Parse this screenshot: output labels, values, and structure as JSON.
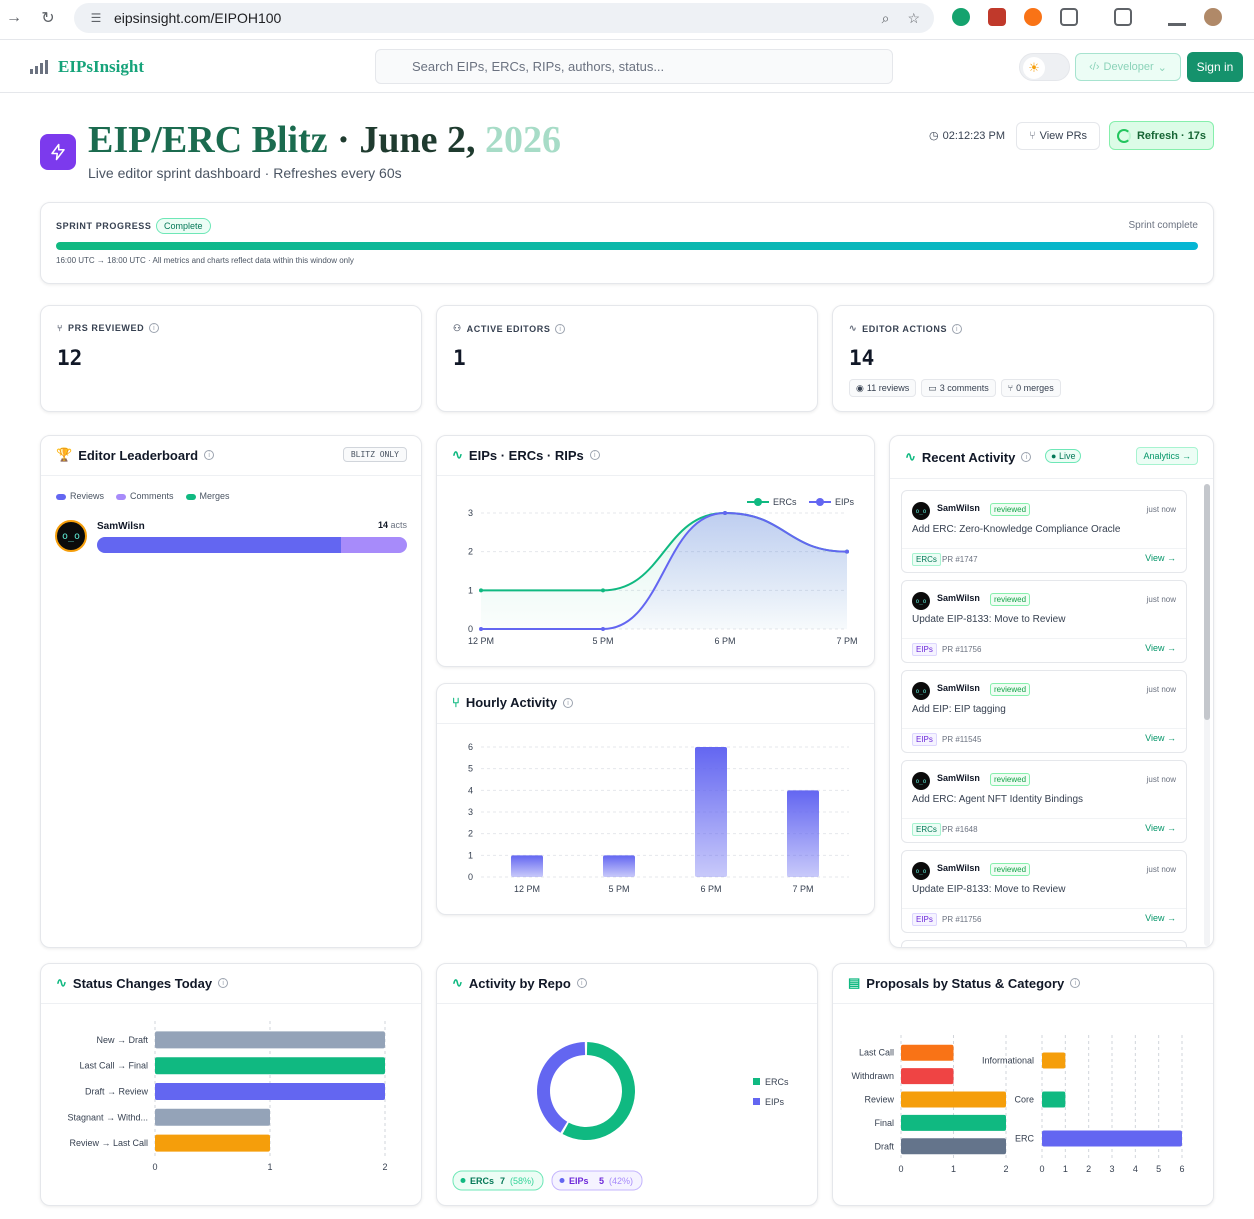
{
  "browser": {
    "url": "eipsinsight.com/EIPOH100"
  },
  "header": {
    "logo": "EIPsInsight",
    "search_placeholder": "Search EIPs, ERCs, RIPs, authors, status...",
    "developer_label": "Developer",
    "signin_label": "Sign in"
  },
  "page": {
    "title_main": "EIP/ERC Blitz",
    "title_sep": " · ",
    "title_date": "June 2, ",
    "title_year": "2026",
    "subtitle": "Live editor sprint dashboard · Refreshes every 60s",
    "clock": "02:12:23 PM",
    "view_prs": "View PRs",
    "refresh": "Refresh · 17s"
  },
  "sprint": {
    "label": "SPRINT PROGRESS",
    "badge": "Complete",
    "status": "Sprint complete",
    "note": "16:00 UTC → 18:00 UTC · All metrics and charts reflect data within this window only",
    "progress_fraction": 1.0
  },
  "stats": {
    "prs_reviewed": {
      "label": "PRS REVIEWED",
      "value": "12"
    },
    "active_editors": {
      "label": "ACTIVE EDITORS",
      "value": "1"
    },
    "editor_actions": {
      "label": "EDITOR ACTIONS",
      "value": "14",
      "chips": [
        "11 reviews",
        "3 comments",
        "0 merges"
      ]
    }
  },
  "leaderboard": {
    "title": "Editor Leaderboard",
    "badge": "BLITZ ONLY",
    "legend": [
      "Reviews",
      "Comments",
      "Merges"
    ],
    "colors": {
      "reviews": "#6366f1",
      "comments": "#a78bfa",
      "merges": "#10b981"
    },
    "editors": [
      {
        "name": "SamWilsn",
        "acts_num": "14",
        "acts_unit": "acts",
        "reviews": 11,
        "comments": 3,
        "merges": 0
      }
    ]
  },
  "recent": {
    "title": "Recent Activity",
    "live": "Live",
    "analytics": "Analytics →",
    "items": [
      {
        "who": "SamWilsn",
        "verb": "reviewed",
        "when": "just now",
        "what": "Add ERC: Zero-Knowledge Compliance Oracle",
        "tag": "ERCs",
        "pr": "PR #1747",
        "view": "View →"
      },
      {
        "who": "SamWilsn",
        "verb": "reviewed",
        "when": "just now",
        "what": "Update EIP-8133: Move to Review",
        "tag": "EIPs",
        "pr": "PR #11756",
        "view": "View →"
      },
      {
        "who": "SamWilsn",
        "verb": "reviewed",
        "when": "just now",
        "what": "Add EIP: EIP tagging",
        "tag": "EIPs",
        "pr": "PR #11545",
        "view": "View →"
      },
      {
        "who": "SamWilsn",
        "verb": "reviewed",
        "when": "just now",
        "what": "Add ERC: Agent NFT Identity Bindings",
        "tag": "ERCs",
        "pr": "PR #1648",
        "view": "View →"
      },
      {
        "who": "SamWilsn",
        "verb": "reviewed",
        "when": "just now",
        "what": "Update EIP-8133: Move to Review",
        "tag": "EIPs",
        "pr": "PR #11756",
        "view": "View →"
      }
    ]
  },
  "cards": {
    "line_title": "EIPs · ERCs · RIPs",
    "hourly_title": "Hourly Activity",
    "status_title": "Status Changes Today",
    "repo_title": "Activity by Repo",
    "proposals_title": "Proposals by Status & Category"
  },
  "chart_data": [
    {
      "type": "line",
      "x": [
        "12 PM",
        "5 PM",
        "6 PM",
        "7 PM"
      ],
      "series": [
        {
          "name": "ERCs",
          "values": [
            1,
            1,
            3,
            2
          ],
          "color": "#10b981"
        },
        {
          "name": "EIPs",
          "values": [
            0,
            0,
            3,
            2
          ],
          "color": "#6366f1"
        }
      ],
      "ylim": [
        0,
        3
      ],
      "yticks": [
        "0",
        "1",
        "2",
        "3"
      ],
      "legend": "top-right"
    },
    {
      "type": "bar",
      "categories": [
        "12 PM",
        "5 PM",
        "6 PM",
        "7 PM"
      ],
      "values": [
        1,
        1,
        6,
        4
      ],
      "ylim": [
        0,
        6
      ],
      "yticks": [
        "0",
        "1",
        "2",
        "3",
        "4",
        "5",
        "6"
      ],
      "color": "#6366f1"
    },
    {
      "type": "bar",
      "orientation": "horizontal",
      "categories": [
        "New → Draft",
        "Last Call → Final",
        "Draft → Review",
        "Stagnant → Withd...",
        "Review → Last Call"
      ],
      "values": [
        2,
        2,
        2,
        1,
        1
      ],
      "colors": [
        "#94a3b8",
        "#10b981",
        "#6366f1",
        "#94a3b8",
        "#f59e0b"
      ],
      "xlim": [
        0,
        2
      ],
      "xticks": [
        "0",
        "1",
        "2"
      ]
    },
    {
      "type": "pie",
      "donut": true,
      "labels": [
        "ERCs",
        "EIPs"
      ],
      "values": [
        7,
        5
      ],
      "percent_labels": [
        "(58%)",
        "(42%)"
      ],
      "colors": [
        "#10b981",
        "#6366f1"
      ],
      "legend": "right"
    },
    {
      "type": "bar",
      "orientation": "horizontal",
      "categories": [
        "Last Call",
        "Withdrawn",
        "Review",
        "Final",
        "Draft"
      ],
      "values": [
        1,
        1,
        2,
        2,
        2
      ],
      "colors": [
        "#f97316",
        "#ef4444",
        "#f59e0b",
        "#10b981",
        "#64748b"
      ],
      "xlim": [
        0,
        2
      ],
      "xticks": [
        "0",
        "1",
        "2"
      ]
    },
    {
      "type": "bar",
      "orientation": "horizontal",
      "categories": [
        "Informational",
        "Core",
        "ERC"
      ],
      "values": [
        1,
        1,
        6
      ],
      "colors": [
        "#f59e0b",
        "#10b981",
        "#6366f1"
      ],
      "xlim": [
        0,
        6
      ],
      "xticks": [
        "0",
        "1",
        "2",
        "3",
        "4",
        "5",
        "6"
      ]
    }
  ]
}
